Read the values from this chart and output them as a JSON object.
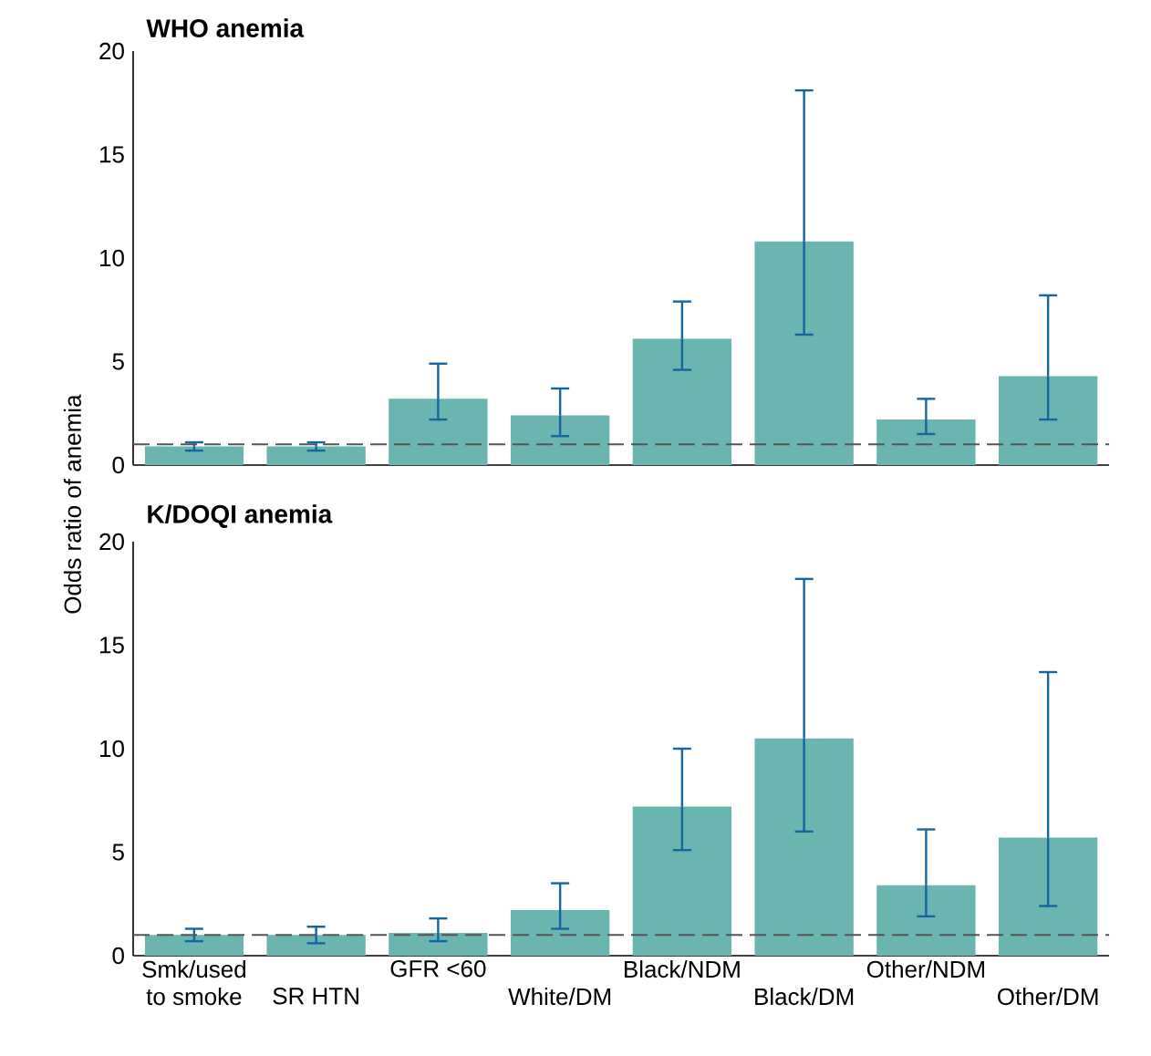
{
  "chart_data": [
    {
      "type": "bar",
      "title": "WHO anemia",
      "categories": [
        null,
        null,
        null,
        null,
        null,
        null,
        null,
        null
      ],
      "color": "#6bb5b0",
      "values": [
        0.9,
        0.9,
        3.2,
        2.4,
        6.1,
        10.8,
        2.2,
        4.3
      ],
      "errors": [
        [
          0.7,
          1.1
        ],
        [
          0.7,
          1.1
        ],
        [
          2.2,
          4.9
        ],
        [
          1.4,
          3.7
        ],
        [
          4.6,
          7.9
        ],
        [
          6.3,
          18.1
        ],
        [
          1.5,
          3.2
        ],
        [
          2.2,
          8.2
        ]
      ],
      "ylim": [
        0,
        20
      ],
      "yticks": [
        0,
        5,
        10,
        15,
        20
      ],
      "tick_labels": "y",
      "grid": false,
      "ref_lines": [
        {
          "axis": "y",
          "value": 1,
          "color": "#555555",
          "line_style": "dashed"
        }
      ]
    },
    {
      "type": "bar",
      "title": "K/DOQI anemia",
      "ylabel": "Odds ratio of anemia",
      "categories": [
        "Smk/used to smoke",
        "SR HTN",
        "GFR <60",
        "White/DM",
        "Black/NDM",
        "Black/DM",
        "Other/NDM",
        "Other/DM"
      ],
      "color": "#6bb5b0",
      "values": [
        1.0,
        1.0,
        1.1,
        2.2,
        7.2,
        10.5,
        3.4,
        5.7
      ],
      "errors": [
        [
          0.7,
          1.3
        ],
        [
          0.6,
          1.4
        ],
        [
          0.7,
          1.8
        ],
        [
          1.3,
          3.5
        ],
        [
          5.1,
          10.0
        ],
        [
          6.0,
          18.2
        ],
        [
          1.9,
          6.1
        ],
        [
          2.4,
          13.7
        ]
      ],
      "ylim": [
        0,
        20
      ],
      "yticks": [
        0,
        5,
        10,
        15,
        20
      ],
      "grid": false,
      "ref_lines": [
        {
          "axis": "y",
          "value": 1,
          "color": "#555555",
          "line_style": "dashed"
        }
      ]
    }
  ]
}
